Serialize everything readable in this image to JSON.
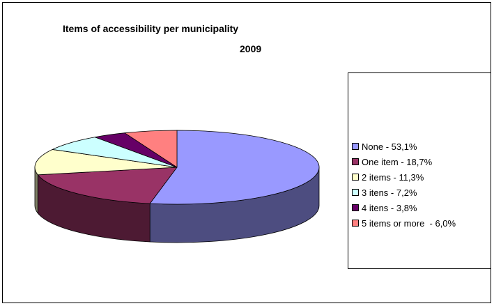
{
  "chart_data": {
    "type": "pie",
    "title": "Items of accessibility per municipality",
    "subtitle": "2009",
    "three_d": true,
    "legend_position": "right",
    "slices": [
      {
        "label": "None - 53,1%",
        "category": "None",
        "value": 53.1,
        "color": "#9999FF",
        "side_color": "#4D4D80"
      },
      {
        "label": "One item - 18,7%",
        "category": "One item",
        "value": 18.7,
        "color": "#993366",
        "side_color": "#4D1A33"
      },
      {
        "label": "2 items - 11,3%",
        "category": "2 items",
        "value": 11.3,
        "color": "#FFFFCC",
        "side_color": "#808066"
      },
      {
        "label": "3 itens - 7,2%",
        "category": "3 itens",
        "value": 7.2,
        "color": "#CCFFFF",
        "side_color": "#668080"
      },
      {
        "label": "4 itens - 3,8%",
        "category": "4 itens",
        "value": 3.8,
        "color": "#660066",
        "side_color": "#330033"
      },
      {
        "label": "5 items or more  - 6,0%",
        "category": "5 items or more",
        "value": 6.0,
        "color": "#FF8080",
        "side_color": "#804040"
      }
    ]
  }
}
